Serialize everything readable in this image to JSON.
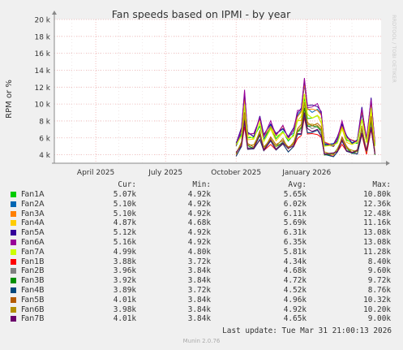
{
  "chart_data": {
    "type": "line",
    "title": "Fan speeds based on IPMI - by year",
    "ylabel": "RPM or %",
    "watermark": "RRDTOOL / TOBI OETIKER",
    "ylim": [
      3000,
      20000
    ],
    "yticks": [
      "4 k",
      "6 k",
      "8 k",
      "10 k",
      "12 k",
      "14 k",
      "16 k",
      "18 k",
      "20 k"
    ],
    "ytick_values": [
      4000,
      6000,
      8000,
      10000,
      12000,
      14000,
      16000,
      18000,
      20000
    ],
    "x_range": [
      "2025-02-06",
      "2026-04-08"
    ],
    "xticks": [
      {
        "label": "April 2025",
        "date": "2025-04-01"
      },
      {
        "label": "July 2025",
        "date": "2025-07-01"
      },
      {
        "label": "October 2025",
        "date": "2025-10-01"
      },
      {
        "label": "January 2026",
        "date": "2026-01-01"
      }
    ],
    "grid": true,
    "series": [
      {
        "name": "Fan1A",
        "color": "#00cc00",
        "cur": "5.07k",
        "min": "4.92k",
        "avg": "5.65k",
        "max": "10.80k",
        "mean": 5650,
        "max_v": 10800,
        "min_v": 4920
      },
      {
        "name": "Fan2A",
        "color": "#0066b3",
        "cur": "5.10k",
        "min": "4.92k",
        "avg": "6.02k",
        "max": "12.36k",
        "mean": 6020,
        "max_v": 12360,
        "min_v": 4920
      },
      {
        "name": "Fan3A",
        "color": "#ff8000",
        "cur": "5.10k",
        "min": "4.92k",
        "avg": "6.11k",
        "max": "12.48k",
        "mean": 6110,
        "max_v": 12480,
        "min_v": 4920
      },
      {
        "name": "Fan4A",
        "color": "#ffcc00",
        "cur": "4.87k",
        "min": "4.68k",
        "avg": "5.69k",
        "max": "11.16k",
        "mean": 5690,
        "max_v": 11160,
        "min_v": 4680
      },
      {
        "name": "Fan5A",
        "color": "#330099",
        "cur": "5.12k",
        "min": "4.92k",
        "avg": "6.31k",
        "max": "13.08k",
        "mean": 6310,
        "max_v": 13080,
        "min_v": 4920
      },
      {
        "name": "Fan6A",
        "color": "#990099",
        "cur": "5.16k",
        "min": "4.92k",
        "avg": "6.35k",
        "max": "13.08k",
        "mean": 6350,
        "max_v": 13080,
        "min_v": 4920
      },
      {
        "name": "Fan7A",
        "color": "#ccff00",
        "cur": "4.99k",
        "min": "4.80k",
        "avg": "5.81k",
        "max": "11.28k",
        "mean": 5810,
        "max_v": 11280,
        "min_v": 4800
      },
      {
        "name": "Fan1B",
        "color": "#ff0000",
        "cur": "3.88k",
        "min": "3.72k",
        "avg": "4.34k",
        "max": "8.40k",
        "mean": 4340,
        "max_v": 8400,
        "min_v": 3720
      },
      {
        "name": "Fan2B",
        "color": "#808080",
        "cur": "3.96k",
        "min": "3.84k",
        "avg": "4.68k",
        "max": "9.60k",
        "mean": 4680,
        "max_v": 9600,
        "min_v": 3840
      },
      {
        "name": "Fan3B",
        "color": "#008f00",
        "cur": "3.92k",
        "min": "3.84k",
        "avg": "4.72k",
        "max": "9.72k",
        "mean": 4720,
        "max_v": 9720,
        "min_v": 3840
      },
      {
        "name": "Fan4B",
        "color": "#00487d",
        "cur": "3.89k",
        "min": "3.72k",
        "avg": "4.52k",
        "max": "8.76k",
        "mean": 4520,
        "max_v": 8760,
        "min_v": 3720
      },
      {
        "name": "Fan5B",
        "color": "#b35a00",
        "cur": "4.01k",
        "min": "3.84k",
        "avg": "4.96k",
        "max": "10.32k",
        "mean": 4960,
        "max_v": 10320,
        "min_v": 3840
      },
      {
        "name": "Fan6B",
        "color": "#b38f00",
        "cur": "3.98k",
        "min": "3.84k",
        "avg": "4.92k",
        "max": "10.20k",
        "mean": 4920,
        "max_v": 10200,
        "min_v": 3840
      },
      {
        "name": "Fan7B",
        "color": "#6b006b",
        "cur": "4.01k",
        "min": "3.84k",
        "avg": "4.65k",
        "max": "9.00k",
        "mean": 4650,
        "max_v": 9000,
        "min_v": 3840
      }
    ],
    "shape_profile": [
      [
        "2025-10-01",
        0.05
      ],
      [
        "2025-10-08",
        0.25
      ],
      [
        "2025-10-12",
        0.8
      ],
      [
        "2025-10-16",
        0.2
      ],
      [
        "2025-10-24",
        0.18
      ],
      [
        "2025-11-01",
        0.45
      ],
      [
        "2025-11-06",
        0.15
      ],
      [
        "2025-11-15",
        0.35
      ],
      [
        "2025-11-22",
        0.18
      ],
      [
        "2025-12-01",
        0.3
      ],
      [
        "2025-12-08",
        0.15
      ],
      [
        "2025-12-15",
        0.25
      ],
      [
        "2025-12-20",
        0.5
      ],
      [
        "2025-12-25",
        0.55
      ],
      [
        "2025-12-29",
        1.0
      ],
      [
        "2026-01-02",
        0.6
      ],
      [
        "2026-01-08",
        0.58
      ],
      [
        "2026-01-15",
        0.6
      ],
      [
        "2026-01-20",
        0.5
      ],
      [
        "2026-01-24",
        0.05
      ],
      [
        "2026-02-05",
        0.04
      ],
      [
        "2026-02-10",
        0.12
      ],
      [
        "2026-02-16",
        0.35
      ],
      [
        "2026-02-22",
        0.15
      ],
      [
        "2026-03-01",
        0.08
      ],
      [
        "2026-03-08",
        0.1
      ],
      [
        "2026-03-14",
        0.55
      ],
      [
        "2026-03-20",
        0.1
      ],
      [
        "2026-03-26",
        0.7
      ],
      [
        "2026-03-31",
        0.05
      ]
    ]
  },
  "legend_header": {
    "cur": "Cur:",
    "min": "Min:",
    "avg": "Avg:",
    "max": "Max:"
  },
  "footer": {
    "last_update": "Last update: Tue Mar 31 21:00:13 2026",
    "version": "Munin 2.0.76"
  }
}
